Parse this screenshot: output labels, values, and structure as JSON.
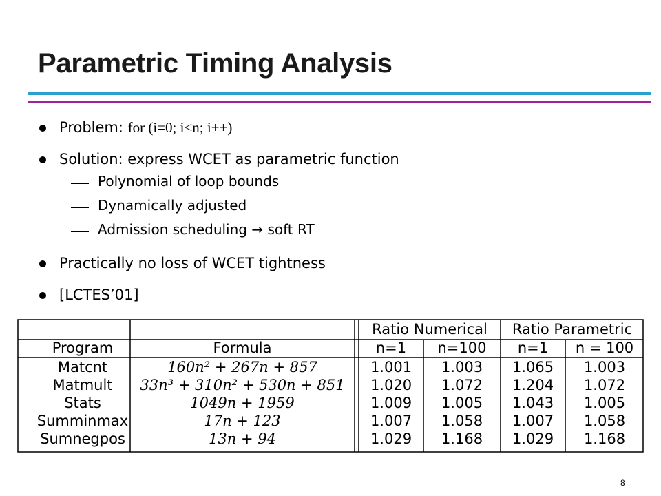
{
  "title": "Parametric Timing Analysis",
  "bullets": {
    "problem_label": "Problem: ",
    "problem_code": "for (i=0; i<n; i++)",
    "solution": "Solution: express WCET as parametric function",
    "sub_items": [
      "Polynomial of loop bounds",
      "Dynamically adjusted",
      "Admission scheduling → soft RT"
    ],
    "tightness": "Practically no loss of WCET tightness",
    "citation": "[LCTES’01]"
  },
  "table": {
    "group_headers": [
      "Ratio Numerical",
      "Ratio Parametric"
    ],
    "col_headers": [
      "Program",
      "Formula",
      "n=1",
      "n=100",
      "n=1",
      "n = 100"
    ],
    "rows": [
      {
        "program": "Matcnt",
        "formula": "160n² + 267n + 857",
        "rn1": "1.001",
        "rn100": "1.003",
        "rp1": "1.065",
        "rp100": "1.003"
      },
      {
        "program": "Matmult",
        "formula": "33n³ + 310n² + 530n + 851",
        "rn1": "1.020",
        "rn100": "1.072",
        "rp1": "1.204",
        "rp100": "1.072"
      },
      {
        "program": "Stats",
        "formula": "1049n + 1959",
        "rn1": "1.009",
        "rn100": "1.005",
        "rp1": "1.043",
        "rp100": "1.005"
      },
      {
        "program": "Summinmax",
        "formula": "17n + 123",
        "rn1": "1.007",
        "rn100": "1.058",
        "rp1": "1.007",
        "rp100": "1.058"
      },
      {
        "program": "Sumnegpos",
        "formula": "13n + 94",
        "rn1": "1.029",
        "rn100": "1.168",
        "rp1": "1.029",
        "rp100": "1.168"
      }
    ]
  },
  "page_number": "8",
  "colors": {
    "rule_top": "#2aa0cc",
    "rule_bottom": "#a020a0"
  }
}
